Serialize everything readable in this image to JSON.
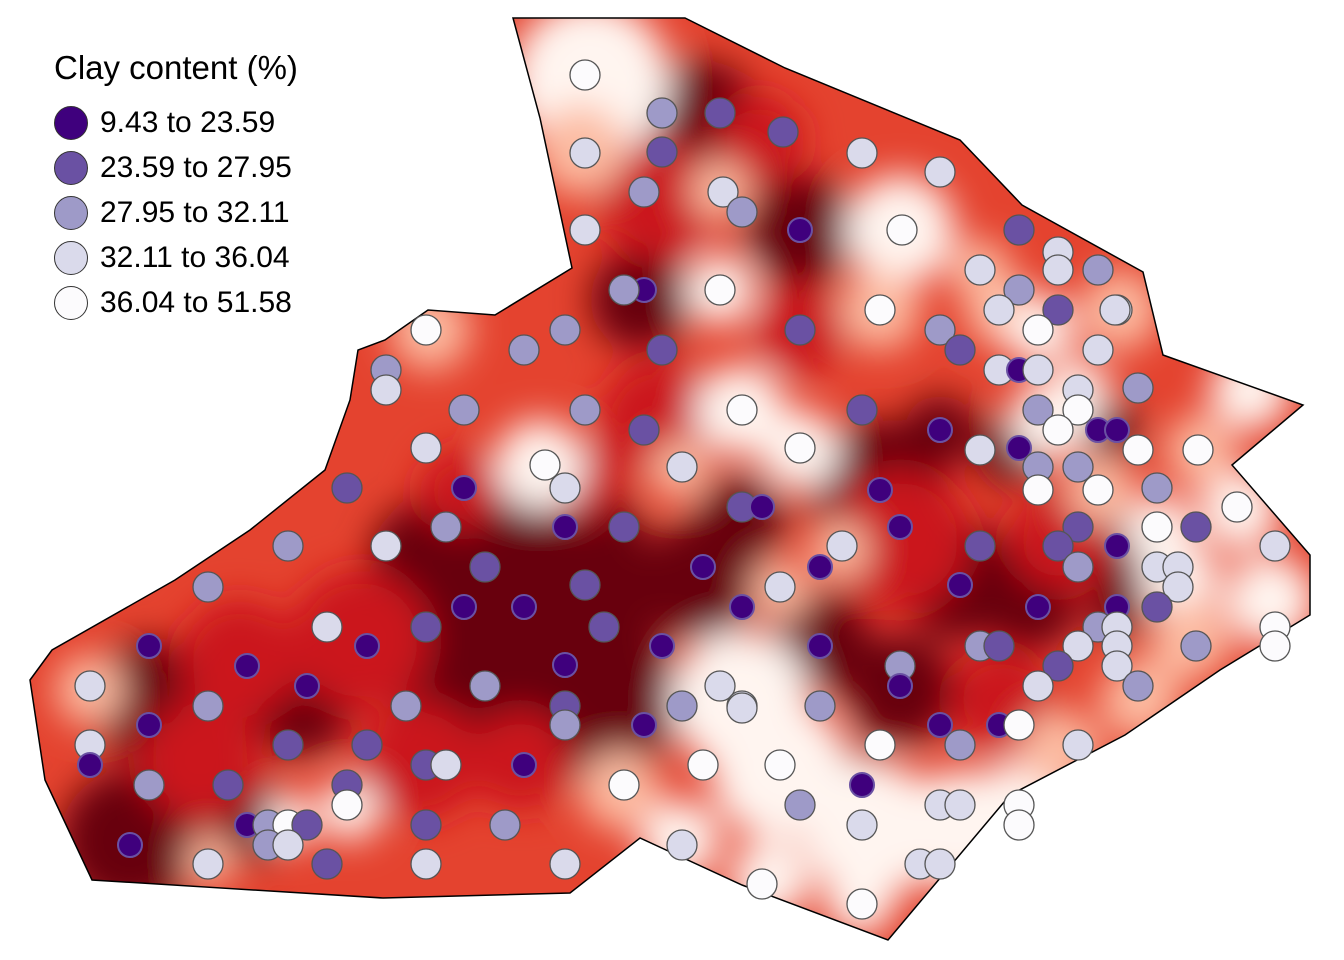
{
  "legend": {
    "title": "Clay content (%)",
    "classes": [
      {
        "label": "9.43 to 23.59",
        "color": "#3f007d"
      },
      {
        "label": "23.59 to 27.95",
        "color": "#6a51a3"
      },
      {
        "label": "27.95 to 32.11",
        "color": "#9e9ac8"
      },
      {
        "label": "32.11 to 36.04",
        "color": "#dadaeb"
      },
      {
        "label": "36.04 to 51.58",
        "color": "#fcfbfd"
      }
    ]
  },
  "surface_colors": [
    "#fff5f0",
    "#fcbba1",
    "#fb6a4a",
    "#cb181d",
    "#67000d"
  ]
}
